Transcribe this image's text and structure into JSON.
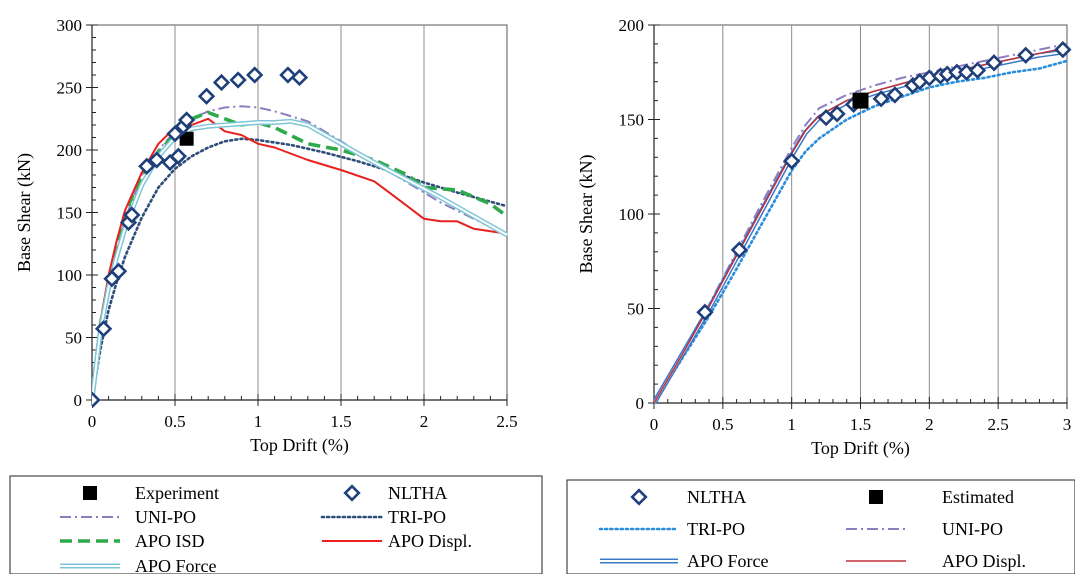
{
  "chart_data": [
    {
      "type": "line",
      "xlabel": "Top Drift  (%)",
      "ylabel": "Base Shear  (kN)",
      "xlim": [
        0,
        2.5
      ],
      "ylim": [
        0,
        300
      ],
      "xticks": [
        0,
        0.5,
        1,
        1.5,
        2,
        2.5
      ],
      "xtick_labels": [
        "0",
        "0.5",
        "1",
        "1.5",
        "2",
        "2.5"
      ],
      "yticks": [
        0,
        50,
        100,
        150,
        200,
        250,
        300
      ],
      "ytick_labels": [
        "0",
        "50",
        "100",
        "150",
        "200",
        "250",
        "300"
      ],
      "grid": "vertical",
      "legend": "below",
      "series": [
        {
          "name": "Experiment",
          "style": "square",
          "color": "#000000",
          "x": [
            0.57
          ],
          "y": [
            209
          ]
        },
        {
          "name": "NLTHA",
          "style": "diamond",
          "color": "#1F3F7A",
          "x": [
            0,
            0.07,
            0.12,
            0.16,
            0.22,
            0.24,
            0.33,
            0.39,
            0.47,
            0.5,
            0.52,
            0.55,
            0.57,
            0.69,
            0.78,
            0.88,
            0.98,
            1.18,
            1.25
          ],
          "y": [
            0,
            57,
            97,
            103,
            142,
            148,
            187,
            192,
            190,
            213,
            195,
            219,
            224,
            243,
            254,
            256,
            260,
            260,
            258
          ]
        },
        {
          "name": "UNI-PO",
          "style": "dashdot",
          "color": "#8E7CC3",
          "x": [
            0,
            0.05,
            0.1,
            0.15,
            0.2,
            0.3,
            0.4,
            0.5,
            0.6,
            0.7,
            0.8,
            0.9,
            1.0,
            1.1,
            1.3,
            1.5,
            1.7,
            1.9,
            2.1,
            2.3,
            2.5
          ],
          "y": [
            0,
            60,
            95,
            120,
            145,
            180,
            200,
            215,
            225,
            231,
            234,
            235,
            234,
            231,
            223,
            207,
            190,
            174,
            158,
            145,
            132
          ]
        },
        {
          "name": "TRI-PO",
          "style": "dotted",
          "color": "#2E4D7B",
          "x": [
            0,
            0.05,
            0.1,
            0.15,
            0.2,
            0.3,
            0.4,
            0.5,
            0.6,
            0.7,
            0.8,
            0.9,
            1.0,
            1.2,
            1.4,
            1.6,
            1.8,
            2.0,
            2.2,
            2.5
          ],
          "y": [
            0,
            40,
            72,
            95,
            115,
            146,
            170,
            185,
            195,
            202,
            207,
            209,
            208,
            204,
            198,
            191,
            183,
            174,
            166,
            155
          ]
        },
        {
          "name": "APO ISD",
          "style": "dashed",
          "color": "#2EAA4A",
          "x": [
            0,
            0.05,
            0.1,
            0.15,
            0.2,
            0.3,
            0.4,
            0.5,
            0.6,
            0.7,
            0.8,
            0.9,
            1.0,
            1.1,
            1.3,
            1.5,
            1.7,
            1.9,
            2.0,
            2.2,
            2.4,
            2.5
          ],
          "y": [
            0,
            60,
            95,
            125,
            150,
            180,
            198,
            213,
            225,
            230,
            225,
            220,
            222,
            218,
            205,
            200,
            192,
            180,
            170,
            168,
            157,
            147
          ]
        },
        {
          "name": "APO Displ.",
          "style": "solid",
          "color": "#E8201E",
          "x": [
            0,
            0.05,
            0.1,
            0.15,
            0.2,
            0.3,
            0.4,
            0.5,
            0.6,
            0.7,
            0.8,
            0.9,
            1.0,
            1.1,
            1.3,
            1.5,
            1.7,
            1.8,
            1.9,
            2.0,
            2.1,
            2.2,
            2.3,
            2.4,
            2.5
          ],
          "y": [
            0,
            62,
            100,
            128,
            152,
            182,
            205,
            218,
            220,
            225,
            215,
            212,
            205,
            202,
            192,
            184,
            175,
            165,
            155,
            145,
            143,
            143,
            137,
            135,
            133
          ]
        },
        {
          "name": "APO Force",
          "style": "double",
          "color": "#7EC6D7",
          "x": [
            0,
            0.05,
            0.1,
            0.15,
            0.2,
            0.3,
            0.4,
            0.5,
            0.6,
            0.7,
            0.8,
            0.9,
            1.0,
            1.1,
            1.2,
            1.3,
            1.5,
            1.7,
            1.9,
            2.1,
            2.3,
            2.5
          ],
          "y": [
            0,
            55,
            90,
            115,
            138,
            172,
            195,
            210,
            217,
            219,
            220,
            221,
            222,
            222,
            223,
            220,
            205,
            190,
            176,
            162,
            147,
            132
          ]
        }
      ],
      "legend_entries": [
        {
          "name": "Experiment",
          "symbol": "square",
          "color": "#000000"
        },
        {
          "name": "NLTHA",
          "symbol": "diamond",
          "color": "#1F3F7A"
        },
        {
          "name": "UNI-PO",
          "symbol": "dashdot",
          "color": "#8E7CC3"
        },
        {
          "name": "TRI-PO",
          "symbol": "dotted",
          "color": "#2E4D7B"
        },
        {
          "name": "APO ISD",
          "symbol": "dashed",
          "color": "#2EAA4A"
        },
        {
          "name": "APO Displ.",
          "symbol": "solid",
          "color": "#E8201E"
        },
        {
          "name": "APO Force",
          "symbol": "double",
          "color": "#7EC6D7"
        }
      ]
    },
    {
      "type": "line",
      "xlabel": "Top Drift  (%)",
      "ylabel": "Base Shear  (kN)",
      "xlim": [
        0,
        3
      ],
      "ylim": [
        0,
        200
      ],
      "xticks": [
        0,
        0.5,
        1,
        1.5,
        2,
        2.5,
        3
      ],
      "xtick_labels": [
        "0",
        "0.5",
        "1",
        "1.5",
        "2",
        "2.5",
        "3"
      ],
      "yticks": [
        0,
        50,
        100,
        150,
        200
      ],
      "ytick_labels": [
        "0",
        "50",
        "100",
        "150",
        "200"
      ],
      "grid": "vertical",
      "legend": "below",
      "series": [
        {
          "name": "NLTHA",
          "style": "diamond",
          "color": "#1F3F7A",
          "x": [
            0.37,
            0.62,
            1.0,
            1.25,
            1.33,
            1.45,
            1.65,
            1.75,
            1.88,
            1.93,
            2.0,
            2.08,
            2.13,
            2.2,
            2.27,
            2.35,
            2.47,
            2.7,
            2.97
          ],
          "y": [
            48,
            81,
            128,
            151,
            153,
            158,
            161,
            163,
            168,
            170,
            172,
            173,
            174,
            175,
            175,
            176,
            180,
            184,
            187
          ]
        },
        {
          "name": "Estimated",
          "style": "square",
          "color": "#000000",
          "x": [
            1.5
          ],
          "y": [
            160
          ]
        },
        {
          "name": "TRI-PO",
          "style": "dotted",
          "color": "#2A8DDC",
          "x": [
            0,
            0.2,
            0.4,
            0.6,
            0.8,
            1.0,
            1.1,
            1.2,
            1.4,
            1.6,
            1.8,
            2.0,
            2.2,
            2.4,
            2.6,
            2.8,
            3.0
          ],
          "y": [
            0,
            23,
            46,
            71,
            97,
            123,
            133,
            140,
            150,
            157,
            162,
            167,
            170,
            172,
            175,
            177,
            181
          ]
        },
        {
          "name": "UNI-PO",
          "style": "dashdot",
          "color": "#8E7CC3",
          "x": [
            0,
            0.2,
            0.4,
            0.6,
            0.8,
            1.0,
            1.1,
            1.2,
            1.4,
            1.6,
            1.8,
            2.0,
            2.2,
            2.4,
            2.6,
            2.8,
            3.0
          ],
          "y": [
            0,
            26,
            52,
            80,
            108,
            135,
            147,
            156,
            163,
            168,
            172,
            175,
            178,
            181,
            184,
            187,
            190
          ]
        },
        {
          "name": "APO Force",
          "style": "double",
          "color": "#3A78C8",
          "x": [
            0,
            0.2,
            0.4,
            0.6,
            0.8,
            1.0,
            1.1,
            1.2,
            1.4,
            1.6,
            1.8,
            2.0,
            2.2,
            2.4,
            2.6,
            2.8,
            3.0
          ],
          "y": [
            0,
            25,
            50,
            77,
            104,
            131,
            143,
            151,
            159,
            164,
            168,
            172,
            175,
            178,
            181,
            184,
            186
          ]
        },
        {
          "name": "APO Displ.",
          "style": "thin-solid",
          "color": "#C0303A",
          "x": [
            0,
            0.2,
            0.4,
            0.6,
            0.8,
            1.0,
            1.1,
            1.2,
            1.4,
            1.6,
            1.8,
            2.0,
            2.2,
            2.4,
            2.6,
            2.8,
            3.0
          ],
          "y": [
            0,
            25,
            51,
            78,
            105,
            132,
            144,
            152,
            160,
            165,
            169,
            173,
            176,
            179,
            182,
            185,
            188
          ]
        }
      ],
      "legend_entries": [
        {
          "name": "NLTHA",
          "symbol": "diamond",
          "color": "#1F3F7A"
        },
        {
          "name": "Estimated",
          "symbol": "square",
          "color": "#000000"
        },
        {
          "name": "TRI-PO",
          "symbol": "dotted",
          "color": "#2A8DDC"
        },
        {
          "name": "UNI-PO",
          "symbol": "dashdot",
          "color": "#8E7CC3"
        },
        {
          "name": "APO Force",
          "symbol": "double",
          "color": "#3A78C8"
        },
        {
          "name": "APO Displ.",
          "symbol": "thin-solid",
          "color": "#C0303A"
        }
      ]
    }
  ]
}
